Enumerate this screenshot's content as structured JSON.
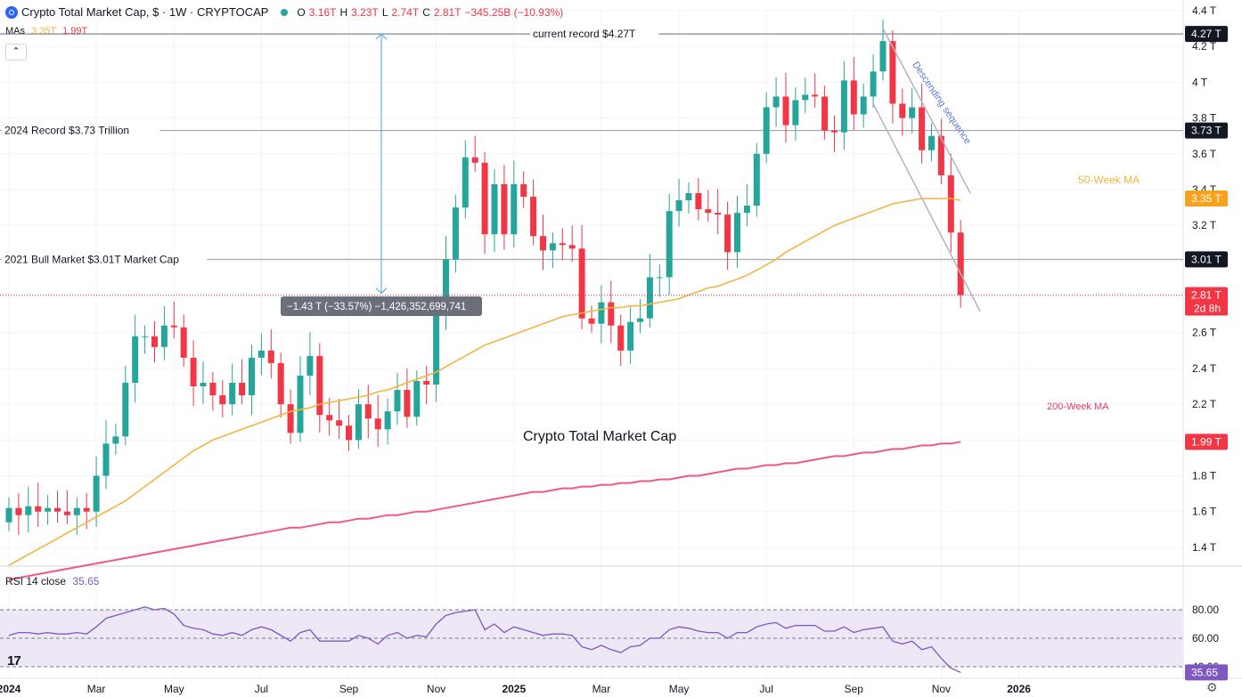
{
  "header": {
    "title": "Crypto Total Market Cap, $ · 1W · CRYPTOCAP",
    "open_label": "O",
    "open": "3.16T",
    "high_label": "H",
    "high": "3.23T",
    "low_label": "L",
    "low": "2.74T",
    "close_label": "C",
    "close": "2.81T",
    "change": "−345.25B (−10.93%)"
  },
  "mas": {
    "label": "MAs",
    "ma50": "3.35T",
    "ma200": "1.99T"
  },
  "collapse_glyph": "⌃",
  "rsi": {
    "label": "RSI 14 close",
    "value": "35.65"
  },
  "tv_logo": "17",
  "gear_glyph": "⚙",
  "colors": {
    "up": "#26a69a",
    "down": "#f23645",
    "ma50": "#f5b342",
    "ma200": "#f0578c",
    "rsi_line": "#7e57c2",
    "rsi_band": "#ede7f6",
    "ref_line": "#787b86"
  },
  "chart_data": {
    "type": "candlestick",
    "title": "Crypto Total Market Cap",
    "unit": "T",
    "ylim": [
      1.3,
      4.4
    ],
    "y_ticks": [
      "1.4 T",
      "1.6 T",
      "1.8 T",
      "2.0 T",
      "2.2 T",
      "2.4 T",
      "2.6 T",
      "2.8 T",
      "3.0 T",
      "3.2 T",
      "3.4 T",
      "3.6 T",
      "3.8 T",
      "4 T",
      "4.2 T",
      "4.4 T"
    ],
    "y_tick_values": [
      1.4,
      1.6,
      1.8,
      2.0,
      2.2,
      2.4,
      2.6,
      2.8,
      3.0,
      3.2,
      3.4,
      3.6,
      3.8,
      4.0,
      4.2,
      4.4
    ],
    "x_ticks": [
      "2024",
      "Mar",
      "May",
      "Jul",
      "Sep",
      "Nov",
      "2025",
      "Mar",
      "May",
      "Jul",
      "Sep",
      "Nov",
      "2026"
    ],
    "x_tick_weeks": [
      0,
      9,
      17,
      26,
      35,
      44,
      52,
      61,
      69,
      78,
      87,
      96,
      104
    ],
    "candles_open": [
      1.54,
      1.62,
      1.58,
      1.63,
      1.6,
      1.62,
      1.6,
      1.58,
      1.62,
      1.6,
      1.8,
      1.98,
      2.02,
      2.32,
      2.58,
      2.58,
      2.52,
      2.64,
      2.63,
      2.46,
      2.3,
      2.32,
      2.25,
      2.2,
      2.32,
      2.25,
      2.46,
      2.5,
      2.43,
      2.2,
      2.04,
      2.36,
      2.47,
      2.14,
      2.11,
      2.08,
      2.0,
      2.2,
      2.12,
      2.06,
      2.16,
      2.28,
      2.13,
      2.33,
      2.31,
      2.7,
      3.01,
      3.3,
      3.58,
      3.55,
      3.15,
      3.43,
      3.15,
      3.43,
      3.36,
      3.14,
      3.06,
      3.1,
      3.09,
      3.07,
      2.68,
      2.65,
      2.77,
      2.64,
      2.5,
      2.66,
      2.68,
      2.91,
      2.91,
      3.28,
      3.34,
      3.38,
      3.29,
      3.27,
      3.26,
      3.05,
      3.27,
      3.31,
      3.6,
      3.86,
      3.92,
      3.76,
      3.9,
      3.93,
      3.92,
      3.73,
      3.72,
      4.01,
      3.82,
      3.92,
      4.06,
      4.23,
      3.88,
      3.8,
      3.86,
      3.62,
      3.7,
      3.48
    ],
    "candles_close": [
      1.62,
      1.58,
      1.63,
      1.6,
      1.62,
      1.6,
      1.58,
      1.62,
      1.6,
      1.8,
      1.98,
      2.02,
      2.32,
      2.58,
      2.58,
      2.52,
      2.64,
      2.63,
      2.46,
      2.3,
      2.32,
      2.25,
      2.2,
      2.32,
      2.25,
      2.46,
      2.5,
      2.43,
      2.2,
      2.04,
      2.36,
      2.47,
      2.14,
      2.11,
      2.08,
      2.0,
      2.2,
      2.12,
      2.06,
      2.16,
      2.28,
      2.13,
      2.33,
      2.31,
      2.7,
      3.01,
      3.3,
      3.58,
      3.55,
      3.15,
      3.43,
      3.15,
      3.43,
      3.36,
      3.14,
      3.06,
      3.1,
      3.09,
      3.07,
      2.68,
      2.65,
      2.77,
      2.64,
      2.5,
      2.66,
      2.68,
      2.91,
      2.91,
      3.28,
      3.34,
      3.38,
      3.29,
      3.27,
      3.26,
      3.05,
      3.27,
      3.31,
      3.6,
      3.86,
      3.92,
      3.76,
      3.9,
      3.93,
      3.92,
      3.73,
      3.72,
      4.01,
      3.82,
      3.92,
      4.06,
      4.23,
      3.88,
      3.8,
      3.86,
      3.62,
      3.7,
      3.48,
      3.16
    ],
    "last_candle": {
      "open": 3.16,
      "high": 3.23,
      "low": 2.74,
      "close": 2.81
    },
    "ma50": [
      1.3,
      1.33,
      1.36,
      1.39,
      1.42,
      1.45,
      1.48,
      1.51,
      1.54,
      1.57,
      1.6,
      1.63,
      1.66,
      1.7,
      1.74,
      1.78,
      1.82,
      1.86,
      1.9,
      1.94,
      1.97,
      2.0,
      2.02,
      2.04,
      2.06,
      2.08,
      2.1,
      2.12,
      2.14,
      2.16,
      2.17,
      2.18,
      2.2,
      2.21,
      2.22,
      2.23,
      2.24,
      2.25,
      2.27,
      2.28,
      2.3,
      2.32,
      2.34,
      2.36,
      2.38,
      2.41,
      2.44,
      2.47,
      2.5,
      2.53,
      2.55,
      2.57,
      2.59,
      2.61,
      2.63,
      2.65,
      2.67,
      2.69,
      2.7,
      2.71,
      2.72,
      2.73,
      2.74,
      2.74,
      2.75,
      2.75,
      2.76,
      2.77,
      2.78,
      2.79,
      2.81,
      2.83,
      2.85,
      2.86,
      2.88,
      2.9,
      2.92,
      2.95,
      2.98,
      3.01,
      3.05,
      3.08,
      3.11,
      3.14,
      3.17,
      3.2,
      3.22,
      3.24,
      3.26,
      3.28,
      3.3,
      3.32,
      3.33,
      3.34,
      3.35,
      3.35,
      3.35,
      3.35,
      3.34
    ],
    "ma200": [
      1.22,
      1.23,
      1.24,
      1.25,
      1.26,
      1.27,
      1.28,
      1.29,
      1.3,
      1.31,
      1.32,
      1.33,
      1.34,
      1.35,
      1.36,
      1.37,
      1.38,
      1.39,
      1.4,
      1.41,
      1.42,
      1.43,
      1.44,
      1.45,
      1.46,
      1.47,
      1.48,
      1.49,
      1.5,
      1.51,
      1.51,
      1.52,
      1.53,
      1.54,
      1.54,
      1.55,
      1.56,
      1.56,
      1.57,
      1.58,
      1.58,
      1.59,
      1.6,
      1.6,
      1.61,
      1.62,
      1.63,
      1.64,
      1.65,
      1.66,
      1.67,
      1.68,
      1.69,
      1.7,
      1.71,
      1.71,
      1.72,
      1.73,
      1.73,
      1.74,
      1.74,
      1.75,
      1.75,
      1.76,
      1.76,
      1.77,
      1.77,
      1.78,
      1.78,
      1.79,
      1.8,
      1.8,
      1.81,
      1.82,
      1.83,
      1.84,
      1.84,
      1.85,
      1.86,
      1.86,
      1.87,
      1.87,
      1.88,
      1.89,
      1.9,
      1.91,
      1.91,
      1.92,
      1.93,
      1.93,
      1.94,
      1.95,
      1.95,
      1.96,
      1.97,
      1.97,
      1.98,
      1.98,
      1.99
    ],
    "rsi": [
      62,
      64,
      64,
      63,
      64,
      63,
      63,
      64,
      63,
      68,
      74,
      76,
      78,
      80,
      82,
      80,
      81,
      77,
      69,
      67,
      66,
      63,
      62,
      64,
      62,
      66,
      68,
      66,
      62,
      58,
      64,
      66,
      58,
      58,
      58,
      58,
      62,
      60,
      56,
      62,
      64,
      60,
      62,
      61,
      70,
      76,
      78,
      79,
      80,
      66,
      70,
      64,
      68,
      66,
      64,
      62,
      63,
      63,
      62,
      54,
      52,
      55,
      52,
      50,
      54,
      55,
      60,
      60,
      66,
      68,
      67,
      65,
      64,
      64,
      60,
      64,
      64,
      68,
      70,
      71,
      67,
      69,
      69,
      69,
      65,
      65,
      68,
      64,
      66,
      67,
      68,
      58,
      56,
      58,
      52,
      54,
      46,
      39,
      36
    ],
    "rsi_levels": [
      "80.00",
      "60.00",
      "40.00"
    ],
    "rsi_values": [
      80,
      60,
      40
    ],
    "ref_lines": [
      {
        "value": 4.27,
        "label": "current record $4.27T",
        "tag": "4.27 T"
      },
      {
        "value": 3.73,
        "label": "2024 Record $3.73 Trillion",
        "tag": "3.73 T"
      },
      {
        "value": 3.01,
        "label": "2021 Bull Market $3.01T Market Cap",
        "tag": "3.01 T"
      }
    ],
    "price_tags": {
      "ma50": "3.35 T",
      "ma200": "1.99 T",
      "last": "2.81 T",
      "countdown": "2d 8h",
      "rsi": "35.65"
    },
    "annotations": {
      "ma50_label": "50-Week MA",
      "ma200_label": "200-Week MA",
      "center_label": "Crypto Total Market Cap",
      "descending": "Descending sequence",
      "measure": "−1.43 T (−33.57%) −1,426,352,699,741"
    }
  }
}
